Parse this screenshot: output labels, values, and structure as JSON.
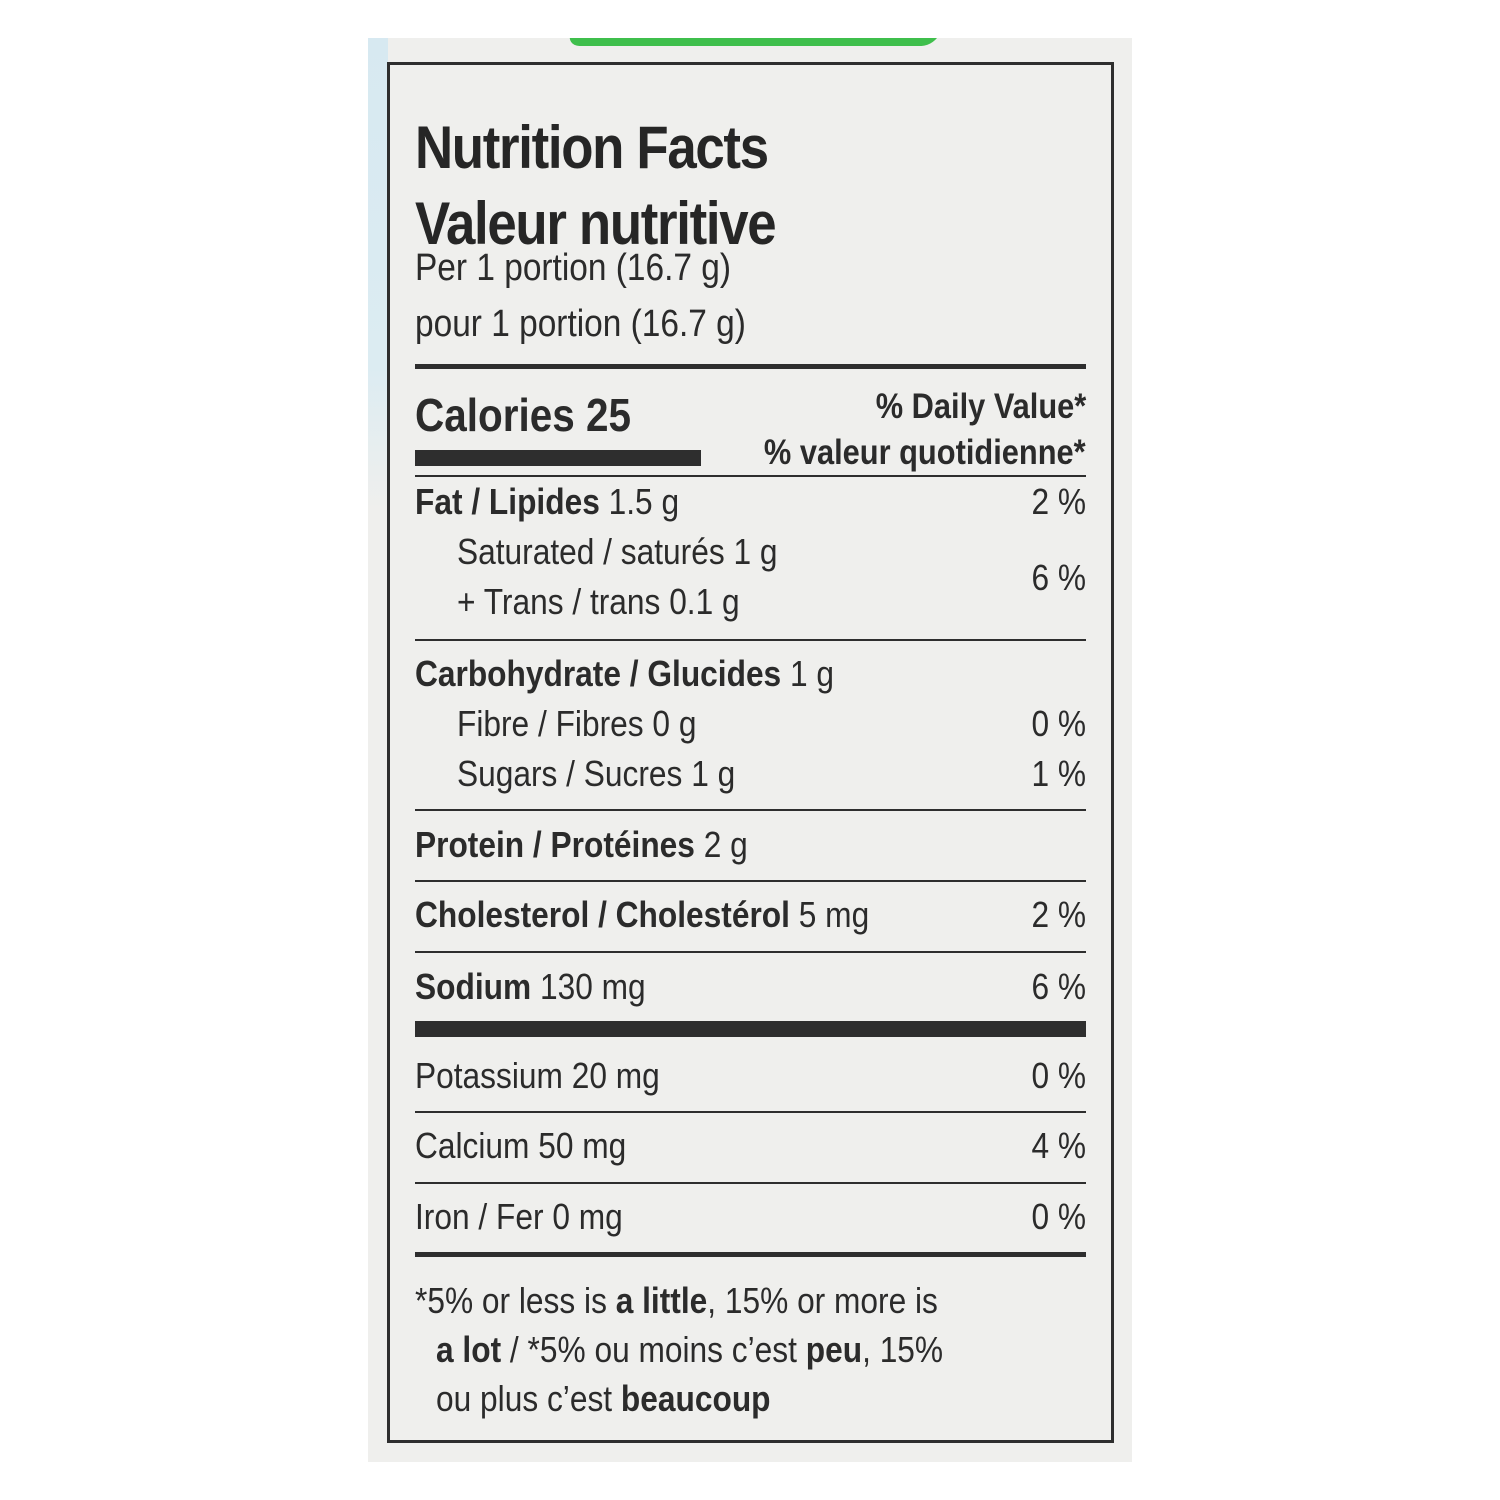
{
  "label": {
    "title_en": "Nutrition Facts",
    "title_fr": "Valeur nutritive",
    "serving_en": "Per 1 portion (16.7 g)",
    "serving_fr": "pour 1 portion (16.7 g)",
    "calories_label": "Calories",
    "calories_value": "25",
    "dv_en": "% Daily Value*",
    "dv_fr": "% valeur quotidienne*"
  },
  "nutrients": {
    "fat": {
      "name": "Fat / Lipides",
      "amount": "1.5 g",
      "dv": "2 %"
    },
    "saturated": {
      "name": "Saturated / saturés",
      "amount": "1 g"
    },
    "trans": {
      "name": "+ Trans / trans",
      "amount": "0.1 g"
    },
    "sat_trans_dv": "6 %",
    "carbohydrate": {
      "name": "Carbohydrate / Glucides",
      "amount": "1 g"
    },
    "fibre": {
      "name": "Fibre / Fibres",
      "amount": "0 g",
      "dv": "0 %"
    },
    "sugars": {
      "name": "Sugars / Sucres",
      "amount": "1 g",
      "dv": "1 %"
    },
    "protein": {
      "name": "Protein / Protéines",
      "amount": "2 g"
    },
    "cholesterol": {
      "name": "Cholesterol / Cholestérol",
      "amount": "5 mg",
      "dv": "2 %"
    },
    "sodium": {
      "name": "Sodium",
      "amount": "130 mg",
      "dv": "6 %"
    },
    "potassium": {
      "name": "Potassium",
      "amount": "20 mg",
      "dv": "0 %"
    },
    "calcium": {
      "name": "Calcium",
      "amount": "50 mg",
      "dv": "4 %"
    },
    "iron": {
      "name": "Iron / Fer",
      "amount": "0 mg",
      "dv": "0 %"
    }
  },
  "footnote": {
    "p1": "*5% or less is ",
    "little": "a little",
    "p2": ", 15% or more is",
    "lot": "a lot",
    "p3": " / *5% ou moins c’est ",
    "peu": "peu",
    "p4": ", 15%",
    "p5": "ou plus c’est ",
    "beaucoup": "beaucoup"
  },
  "colors": {
    "ink": "#2b2b2b",
    "package_background": "#efefed",
    "package_green": "#3fbf4c",
    "package_blue": "#d7e9f1"
  }
}
